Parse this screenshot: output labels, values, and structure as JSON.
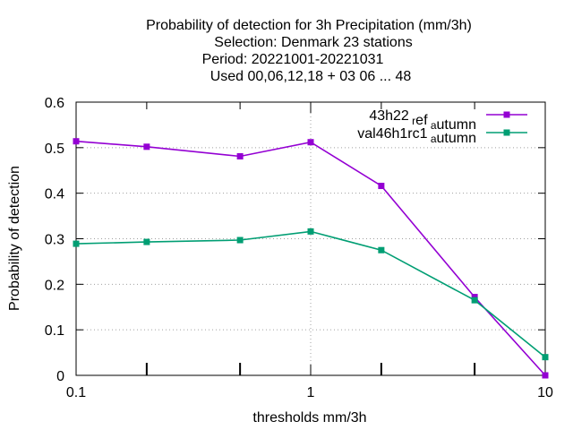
{
  "chart_data": {
    "type": "line",
    "title_lines": [
      "Probability of detection  for 3h Precipitation (mm/3h)",
      "Selection: Denmark     23 stations",
      "Period: 20221001-20221031",
      "Used  00,06,12,18  + 03 06 ... 48"
    ],
    "xlabel": "thresholds mm/3h",
    "ylabel": "Probability of detection",
    "xscale": "log",
    "xlim": [
      0.1,
      10
    ],
    "ylim": [
      0,
      0.6
    ],
    "x_ticks": [
      0.1,
      1,
      10
    ],
    "x_tick_labels": [
      "0.1",
      "1",
      "10"
    ],
    "y_ticks": [
      0,
      0.1,
      0.2,
      0.3,
      0.4,
      0.5,
      0.6
    ],
    "y_tick_labels": [
      "0",
      "0.1",
      "0.2",
      "0.3",
      "0.4",
      "0.5",
      "0.6"
    ],
    "grid": true,
    "legend_position": "top-right",
    "x": [
      0.1,
      0.2,
      0.5,
      1,
      2,
      5,
      10
    ],
    "series": [
      {
        "name": "43h22_ref_autumn",
        "legend_main": "43h22",
        "legend_sub1": "r",
        "legend_mid": "ef",
        "legend_sub2": "a",
        "legend_tail": "utumn",
        "color": "#9400d3",
        "values": [
          0.514,
          0.502,
          0.481,
          0.512,
          0.416,
          0.172,
          0.0
        ]
      },
      {
        "name": "val46h1rc1_autumn",
        "legend_main": "val46h1rc1",
        "legend_sub1": "a",
        "legend_tail": "utumn",
        "color": "#009e73",
        "values": [
          0.289,
          0.293,
          0.297,
          0.316,
          0.275,
          0.165,
          0.04
        ]
      }
    ]
  }
}
